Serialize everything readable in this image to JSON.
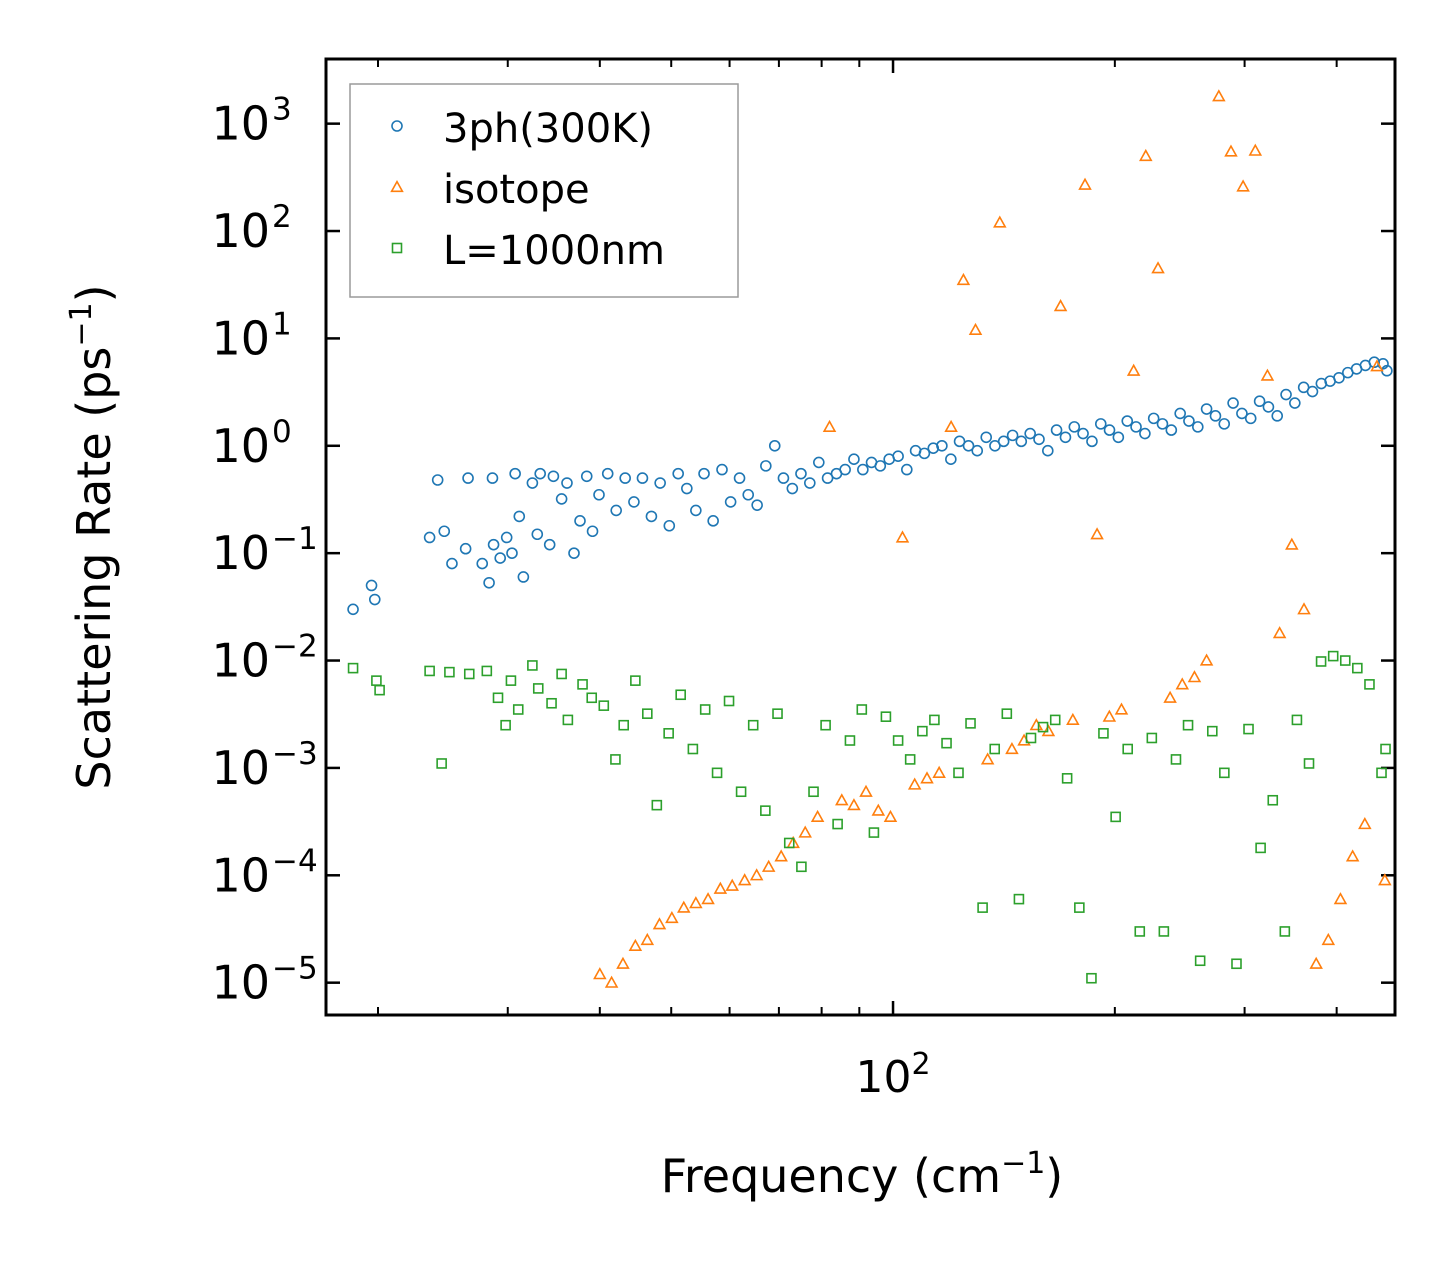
{
  "chart_data": {
    "type": "scatter",
    "xscale": "log",
    "yscale": "log",
    "xlim": [
      17,
      480
    ],
    "ylim": [
      5e-06,
      4000
    ],
    "xlabel": {
      "base": "Frequency (cm",
      "sup": "−1",
      "close": ")"
    },
    "ylabel": {
      "base": "Scattering Rate (ps",
      "sup": "−1",
      "close": ")"
    },
    "x_major_ticks": [
      {
        "value": 100,
        "base": "10",
        "exp": "2"
      }
    ],
    "x_minor_ticks": [
      20,
      30,
      40,
      50,
      60,
      70,
      80,
      90,
      200,
      300,
      400
    ],
    "y_ticks": [
      {
        "value": 1e-05,
        "base": "10",
        "exp": "−5"
      },
      {
        "value": 0.0001,
        "base": "10",
        "exp": "−4"
      },
      {
        "value": 0.001,
        "base": "10",
        "exp": "−3"
      },
      {
        "value": 0.01,
        "base": "10",
        "exp": "−2"
      },
      {
        "value": 0.1,
        "base": "10",
        "exp": "−1"
      },
      {
        "value": 1,
        "base": "10",
        "exp": "0"
      },
      {
        "value": 10,
        "base": "10",
        "exp": "1"
      },
      {
        "value": 100,
        "base": "10",
        "exp": "2"
      },
      {
        "value": 1000,
        "base": "10",
        "exp": "3"
      }
    ],
    "legend_position": "top-left",
    "series": [
      {
        "name": "3ph(300K)",
        "marker": "circle",
        "color": "#1f77b4",
        "points": [
          [
            18.5,
            0.03
          ],
          [
            19.6,
            0.05
          ],
          [
            19.8,
            0.037
          ],
          [
            23.5,
            0.14
          ],
          [
            24.1,
            0.48
          ],
          [
            24.6,
            0.16
          ],
          [
            25.2,
            0.08
          ],
          [
            26.3,
            0.11
          ],
          [
            26.5,
            0.5
          ],
          [
            27.7,
            0.08
          ],
          [
            28.3,
            0.053
          ],
          [
            28.6,
            0.5
          ],
          [
            28.7,
            0.12
          ],
          [
            29.3,
            0.09
          ],
          [
            29.9,
            0.14
          ],
          [
            30.4,
            0.1
          ],
          [
            30.7,
            0.55
          ],
          [
            31.1,
            0.22
          ],
          [
            31.5,
            0.06
          ],
          [
            32.4,
            0.45
          ],
          [
            32.9,
            0.15
          ],
          [
            33.2,
            0.55
          ],
          [
            34.2,
            0.12
          ],
          [
            34.6,
            0.52
          ],
          [
            35.5,
            0.32
          ],
          [
            36.1,
            0.45
          ],
          [
            36.9,
            0.1
          ],
          [
            37.6,
            0.2
          ],
          [
            38.4,
            0.52
          ],
          [
            39.1,
            0.16
          ],
          [
            39.9,
            0.35
          ],
          [
            41.0,
            0.55
          ],
          [
            42.1,
            0.25
          ],
          [
            43.3,
            0.5
          ],
          [
            44.5,
            0.3
          ],
          [
            45.7,
            0.5
          ],
          [
            47.0,
            0.22
          ],
          [
            48.3,
            0.45
          ],
          [
            49.7,
            0.18
          ],
          [
            51.1,
            0.55
          ],
          [
            52.5,
            0.4
          ],
          [
            54.0,
            0.25
          ],
          [
            55.4,
            0.55
          ],
          [
            57.0,
            0.2
          ],
          [
            58.6,
            0.6
          ],
          [
            60.2,
            0.3
          ],
          [
            61.9,
            0.5
          ],
          [
            63.6,
            0.35
          ],
          [
            65.4,
            0.28
          ],
          [
            67.2,
            0.65
          ],
          [
            69.1,
            1.0
          ],
          [
            71.0,
            0.5
          ],
          [
            73.0,
            0.4
          ],
          [
            75.0,
            0.55
          ],
          [
            77.1,
            0.45
          ],
          [
            79.3,
            0.7
          ],
          [
            81.5,
            0.5
          ],
          [
            83.8,
            0.55
          ],
          [
            86.1,
            0.6
          ],
          [
            88.5,
            0.75
          ],
          [
            91.0,
            0.6
          ],
          [
            93.5,
            0.7
          ],
          [
            96.1,
            0.65
          ],
          [
            98.8,
            0.75
          ],
          [
            101.6,
            0.8
          ],
          [
            104.4,
            0.6
          ],
          [
            107.3,
            0.9
          ],
          [
            110.3,
            0.85
          ],
          [
            113.4,
            0.95
          ],
          [
            116.5,
            1.0
          ],
          [
            119.8,
            0.75
          ],
          [
            123.1,
            1.1
          ],
          [
            126.6,
            1.0
          ],
          [
            130.1,
            0.9
          ],
          [
            133.8,
            1.2
          ],
          [
            137.5,
            1.0
          ],
          [
            141.3,
            1.1
          ],
          [
            145.3,
            1.25
          ],
          [
            149.3,
            1.1
          ],
          [
            153.5,
            1.3
          ],
          [
            157.8,
            1.15
          ],
          [
            162.2,
            0.9
          ],
          [
            166.7,
            1.4
          ],
          [
            171.4,
            1.2
          ],
          [
            176.2,
            1.5
          ],
          [
            181.1,
            1.3
          ],
          [
            186.2,
            1.1
          ],
          [
            191.4,
            1.6
          ],
          [
            196.7,
            1.4
          ],
          [
            202.2,
            1.2
          ],
          [
            207.9,
            1.7
          ],
          [
            213.7,
            1.5
          ],
          [
            219.7,
            1.3
          ],
          [
            225.8,
            1.8
          ],
          [
            232.1,
            1.6
          ],
          [
            238.6,
            1.4
          ],
          [
            245.3,
            2.0
          ],
          [
            252.1,
            1.7
          ],
          [
            259.2,
            1.5
          ],
          [
            266.4,
            2.2
          ],
          [
            273.9,
            1.9
          ],
          [
            281.5,
            1.6
          ],
          [
            289.4,
            2.5
          ],
          [
            297.5,
            2.0
          ],
          [
            305.8,
            1.8
          ],
          [
            314.4,
            2.6
          ],
          [
            323.2,
            2.3
          ],
          [
            332.2,
            1.9
          ],
          [
            341.5,
            3.0
          ],
          [
            351.0,
            2.5
          ],
          [
            360.8,
            3.5
          ],
          [
            370.9,
            3.2
          ],
          [
            381.3,
            3.8
          ],
          [
            391.9,
            4.0
          ],
          [
            402.9,
            4.3
          ],
          [
            414.2,
            4.8
          ],
          [
            425.7,
            5.2
          ],
          [
            437.6,
            5.6
          ],
          [
            449.9,
            6.0
          ],
          [
            462.4,
            5.8
          ],
          [
            468.0,
            5.0
          ]
        ]
      },
      {
        "name": "isotope",
        "marker": "triangle",
        "color": "#ff7f0e",
        "points": [
          [
            40.0,
            1.2e-05
          ],
          [
            41.5,
            1e-05
          ],
          [
            43.0,
            1.5e-05
          ],
          [
            44.7,
            2.2e-05
          ],
          [
            46.4,
            2.5e-05
          ],
          [
            48.2,
            3.5e-05
          ],
          [
            50.1,
            4e-05
          ],
          [
            52.0,
            5e-05
          ],
          [
            54.0,
            5.5e-05
          ],
          [
            56.1,
            6e-05
          ],
          [
            58.3,
            7.5e-05
          ],
          [
            60.5,
            8e-05
          ],
          [
            62.9,
            9e-05
          ],
          [
            65.3,
            0.0001
          ],
          [
            67.8,
            0.00012
          ],
          [
            70.5,
            0.00015
          ],
          [
            73.2,
            0.0002
          ],
          [
            76.0,
            0.00025
          ],
          [
            79.0,
            0.00035
          ],
          [
            82.0,
            1.5
          ],
          [
            85.2,
            0.0005
          ],
          [
            88.5,
            0.00045
          ],
          [
            91.9,
            0.0006
          ],
          [
            95.5,
            0.0004
          ],
          [
            99.2,
            0.00035
          ],
          [
            103.0,
            0.14
          ],
          [
            107.0,
            0.0007
          ],
          [
            111.2,
            0.0008
          ],
          [
            115.5,
            0.0009
          ],
          [
            119.9,
            1.5
          ],
          [
            124.6,
            35
          ],
          [
            129.4,
            12
          ],
          [
            134.4,
            0.0012
          ],
          [
            139.6,
            120
          ],
          [
            145.0,
            0.0015
          ],
          [
            150.6,
            0.0018
          ],
          [
            156.5,
            0.0025
          ],
          [
            162.5,
            0.0022
          ],
          [
            168.8,
            20
          ],
          [
            175.4,
            0.0028
          ],
          [
            182.2,
            270
          ],
          [
            189.2,
            0.15
          ],
          [
            196.6,
            0.003
          ],
          [
            204.2,
            0.0035
          ],
          [
            212.1,
            5.0
          ],
          [
            220.3,
            500
          ],
          [
            228.9,
            45
          ],
          [
            237.7,
            0.0045
          ],
          [
            246.9,
            0.006
          ],
          [
            256.5,
            0.007
          ],
          [
            266.4,
            0.01
          ],
          [
            276.8,
            1800
          ],
          [
            287.5,
            550
          ],
          [
            298.6,
            260
          ],
          [
            310.2,
            560
          ],
          [
            322.2,
            4.5
          ],
          [
            334.7,
            0.018
          ],
          [
            347.7,
            0.12
          ],
          [
            361.2,
            0.03
          ],
          [
            375.2,
            1.5e-05
          ],
          [
            389.7,
            2.5e-05
          ],
          [
            404.8,
            6e-05
          ],
          [
            420.5,
            0.00015
          ],
          [
            436.8,
            0.0003
          ],
          [
            453.7,
            5.5
          ],
          [
            465.0,
            9e-05
          ]
        ]
      },
      {
        "name": "L=1000nm",
        "marker": "square",
        "color": "#2ca02c",
        "points": [
          [
            18.5,
            0.0085
          ],
          [
            19.9,
            0.0065
          ],
          [
            20.1,
            0.0053
          ],
          [
            23.5,
            0.008
          ],
          [
            24.4,
            0.0011
          ],
          [
            25.0,
            0.0078
          ],
          [
            26.6,
            0.0075
          ],
          [
            28.1,
            0.008
          ],
          [
            29.1,
            0.0045
          ],
          [
            29.8,
            0.0025
          ],
          [
            30.3,
            0.0065
          ],
          [
            31.0,
            0.0035
          ],
          [
            32.4,
            0.009
          ],
          [
            33.0,
            0.0055
          ],
          [
            34.4,
            0.004
          ],
          [
            35.5,
            0.0075
          ],
          [
            36.2,
            0.0028
          ],
          [
            37.9,
            0.006
          ],
          [
            39.0,
            0.0045
          ],
          [
            40.5,
            0.0038
          ],
          [
            42.0,
            0.0012
          ],
          [
            43.1,
            0.0025
          ],
          [
            44.7,
            0.0065
          ],
          [
            46.4,
            0.0032
          ],
          [
            47.8,
            0.00045
          ],
          [
            49.6,
            0.0021
          ],
          [
            51.5,
            0.0048
          ],
          [
            53.5,
            0.0015
          ],
          [
            55.6,
            0.0035
          ],
          [
            57.7,
            0.0009
          ],
          [
            59.9,
            0.0042
          ],
          [
            62.2,
            0.0006
          ],
          [
            64.6,
            0.0025
          ],
          [
            67.1,
            0.0004
          ],
          [
            69.7,
            0.0032
          ],
          [
            72.3,
            0.0002
          ],
          [
            75.1,
            0.00012
          ],
          [
            78.0,
            0.0006
          ],
          [
            81.0,
            0.0025
          ],
          [
            84.1,
            0.0003
          ],
          [
            87.4,
            0.0018
          ],
          [
            90.7,
            0.0035
          ],
          [
            94.2,
            0.00025
          ],
          [
            97.8,
            0.003
          ],
          [
            101.6,
            0.0018
          ],
          [
            105.5,
            0.0012
          ],
          [
            109.6,
            0.0022
          ],
          [
            113.8,
            0.0028
          ],
          [
            118.2,
            0.0017
          ],
          [
            122.7,
            0.0009
          ],
          [
            127.4,
            0.0026
          ],
          [
            132.3,
            5e-05
          ],
          [
            137.4,
            0.0015
          ],
          [
            142.7,
            0.0032
          ],
          [
            148.2,
            6e-05
          ],
          [
            153.9,
            0.0019
          ],
          [
            159.8,
            0.0024
          ],
          [
            166.0,
            0.0028
          ],
          [
            172.3,
            0.0008
          ],
          [
            179.0,
            5e-05
          ],
          [
            185.9,
            1.1e-05
          ],
          [
            193.0,
            0.0021
          ],
          [
            200.5,
            0.00035
          ],
          [
            208.2,
            0.0015
          ],
          [
            216.2,
            3e-05
          ],
          [
            224.5,
            0.0019
          ],
          [
            233.1,
            3e-05
          ],
          [
            242.1,
            0.0012
          ],
          [
            251.4,
            0.0025
          ],
          [
            261.1,
            1.6e-05
          ],
          [
            271.2,
            0.0022
          ],
          [
            281.6,
            0.0009
          ],
          [
            292.5,
            1.5e-05
          ],
          [
            303.7,
            0.0023
          ],
          [
            315.4,
            0.00018
          ],
          [
            327.6,
            0.0005
          ],
          [
            340.2,
            3e-05
          ],
          [
            353.3,
            0.0028
          ],
          [
            366.9,
            0.0011
          ],
          [
            381.0,
            0.0098
          ],
          [
            395.7,
            0.011
          ],
          [
            410.9,
            0.01
          ],
          [
            426.7,
            0.0085
          ],
          [
            443.2,
            0.006
          ],
          [
            460.2,
            0.0009
          ],
          [
            466.0,
            0.0015
          ]
        ]
      }
    ]
  }
}
